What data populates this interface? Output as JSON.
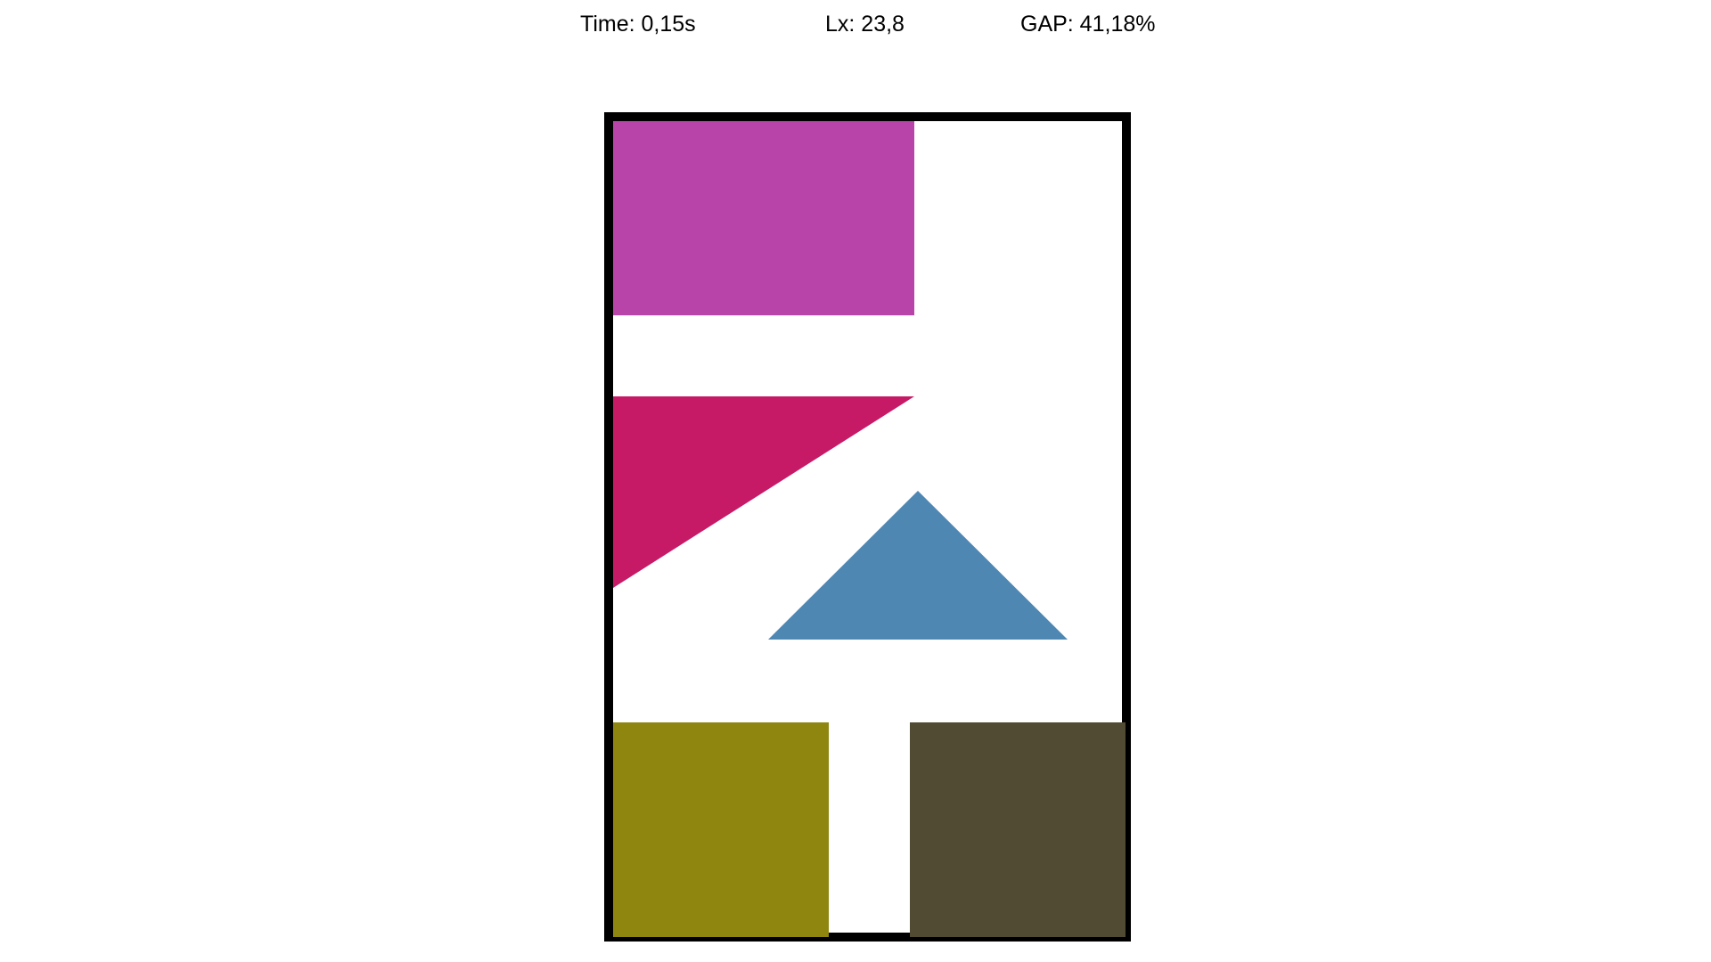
{
  "stats": {
    "time": "Time: 0,15s",
    "lx": "Lx: 23,8",
    "gap": "GAP: 41,18%"
  },
  "colors": {
    "container_border": "#000000",
    "container_fill": "#ffffff",
    "magenta_rectangle": "#b844a9",
    "crimson_triangle": "#c61a66",
    "steel_blue_triangle": "#4f87b3",
    "olive_square": "#8e860f",
    "dark_olive_square": "#514b33"
  }
}
